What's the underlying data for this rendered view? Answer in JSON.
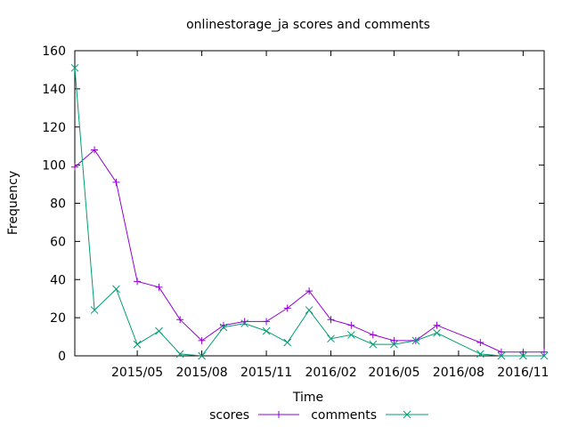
{
  "chart_data": {
    "type": "line",
    "title": "onlinestorage_ja scores and comments",
    "xlabel": "Time",
    "ylabel": "Frequency",
    "ylim": [
      0,
      160
    ],
    "xlim": [
      "2015-02-01",
      "2016-12-01"
    ],
    "yticks": [
      0,
      20,
      40,
      60,
      80,
      100,
      120,
      140,
      160
    ],
    "xticks": [
      {
        "date": "2015-05-01",
        "label": "2015/05"
      },
      {
        "date": "2015-08-01",
        "label": "2015/08"
      },
      {
        "date": "2015-11-01",
        "label": "2015/11"
      },
      {
        "date": "2016-02-01",
        "label": "2016/02"
      },
      {
        "date": "2016-05-01",
        "label": "2016/05"
      },
      {
        "date": "2016-08-01",
        "label": "2016/08"
      },
      {
        "date": "2016-11-01",
        "label": "2016/11"
      }
    ],
    "x": [
      "2015-02-01",
      "2015-03-01",
      "2015-04-01",
      "2015-05-01",
      "2015-06-01",
      "2015-07-01",
      "2015-08-01",
      "2015-09-01",
      "2015-10-01",
      "2015-11-01",
      "2015-12-01",
      "2016-01-01",
      "2016-02-01",
      "2016-03-01",
      "2016-04-01",
      "2016-05-01",
      "2016-06-01",
      "2016-07-01",
      "2016-09-01",
      "2016-10-01",
      "2016-11-01",
      "2016-12-01"
    ],
    "series": [
      {
        "name": "scores",
        "color": "#9400d3",
        "marker": "plus",
        "values": [
          99,
          108,
          91,
          39,
          36,
          19,
          8,
          16,
          18,
          18,
          25,
          34,
          19,
          16,
          11,
          8,
          8,
          16,
          7,
          2,
          2,
          2
        ]
      },
      {
        "name": "comments",
        "color": "#009e73",
        "marker": "cross",
        "values": [
          151,
          24,
          35,
          6,
          13,
          1,
          0,
          15,
          17,
          13,
          7,
          24,
          9,
          11,
          6,
          6,
          8,
          12,
          1,
          0,
          0,
          0
        ]
      }
    ],
    "grid": false,
    "legend": "bottom-center"
  }
}
